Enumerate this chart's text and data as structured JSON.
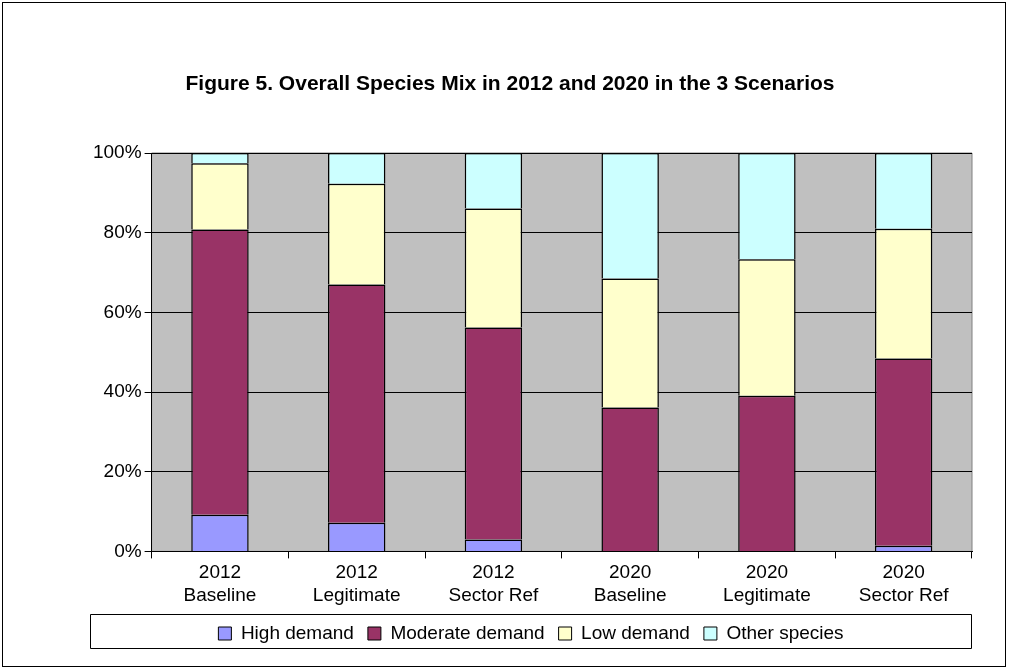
{
  "chart_data": {
    "type": "bar",
    "stacked": true,
    "title": "Figure 5. Overall Species Mix in 2012 and 2020 in the 3 Scenarios",
    "categories": [
      "2012\nBaseline",
      "2012\nLegitimate",
      "2012\nSector Ref",
      "2020\nBaseline",
      "2020\nLegitimate",
      "2020\nSector Ref"
    ],
    "series": [
      {
        "name": "High demand",
        "color": "#9999ff",
        "values": [
          9.2,
          7.2,
          3.0,
          0,
          0,
          1.4
        ]
      },
      {
        "name": "Moderate demand",
        "color": "#993366",
        "values": [
          71.6,
          59.8,
          53.2,
          36.1,
          39.1,
          47.0
        ]
      },
      {
        "name": "Low demand",
        "color": "#ffffcc",
        "values": [
          16.6,
          25.3,
          29.9,
          32.4,
          34.2,
          32.6
        ]
      },
      {
        "name": "Other species",
        "color": "#ccffff",
        "values": [
          2.6,
          7.7,
          13.9,
          31.5,
          26.7,
          19.0
        ]
      }
    ],
    "ylim": [
      0,
      100
    ],
    "yticks": [
      {
        "value": 0,
        "label": "0%"
      },
      {
        "value": 20,
        "label": "20%"
      },
      {
        "value": 40,
        "label": "40%"
      },
      {
        "value": 60,
        "label": "60%"
      },
      {
        "value": 80,
        "label": "80%"
      },
      {
        "value": 100,
        "label": "100%"
      }
    ],
    "grid": "y",
    "legend": "bottom"
  }
}
